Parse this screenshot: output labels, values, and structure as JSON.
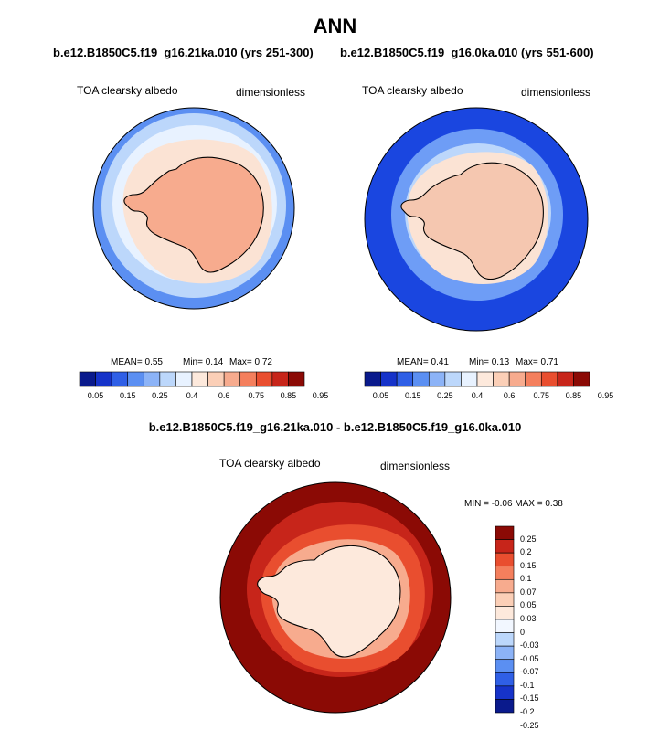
{
  "title": "ANN",
  "panels": [
    {
      "case": "b.e12.B1850C5.f19_g16.21ka.010 (yrs 251-300)",
      "variable": "TOA clearsky albedo",
      "units": "dimensionless",
      "stats": {
        "mean": "MEAN=   0.55",
        "min": "Min=   0.14",
        "max": "Max=   0.72"
      },
      "map": {
        "ocean_near_ice": "#fbe3d4",
        "ocean_mid": "#e8f2ff",
        "ocean_outer": "#bcd7fb",
        "ocean_edge": "#5b8ff2",
        "land": "#f7ab8e"
      }
    },
    {
      "case": "b.e12.B1850C5.f19_g16.0ka.010 (yrs 551-600)",
      "variable": "TOA clearsky albedo",
      "units": "dimensionless",
      "stats": {
        "mean": "MEAN=   0.41",
        "min": "Min=   0.13",
        "max": "Max=   0.71"
      },
      "map": {
        "ocean_near_ice": "#fbe3d4",
        "ocean_mid": "#bcd7fb",
        "ocean_outer": "#6e9df6",
        "ocean_edge": "#1a46e0",
        "land": "#f5c7b0"
      }
    }
  ],
  "main_colorbar": {
    "colors": [
      "#0a1a8c",
      "#1633c9",
      "#2f5fe6",
      "#5b8ff2",
      "#8cb3f7",
      "#bcd7fb",
      "#e8f2ff",
      "#fde9dc",
      "#fbcfb7",
      "#f7ab8e",
      "#f47f5d",
      "#e94e2f",
      "#c7251a",
      "#8b0a05"
    ],
    "tick_labels": [
      "0.05",
      "0.15",
      "0.25",
      "0.4",
      "0.6",
      "0.75",
      "0.85",
      "0.95"
    ]
  },
  "difference": {
    "title": "b.e12.B1850C5.f19_g16.21ka.010 - b.e12.B1850C5.f19_g16.0ka.010",
    "variable": "TOA clearsky albedo",
    "units": "dimensionless",
    "minmax": "MIN =  -0.06 MAX =   0.38",
    "map": {
      "outer": "#8b0a05",
      "mid": "#c7251a",
      "inner": "#e94e2f",
      "near_ice": "#f7ab8e",
      "land": "#fde9dc"
    },
    "colorbar": {
      "colors": [
        "#8b0a05",
        "#c7251a",
        "#e94e2f",
        "#f47f5d",
        "#f7ab8e",
        "#fbcfb7",
        "#fde9dc",
        "#f2f7ff",
        "#bcd7fb",
        "#8cb3f7",
        "#5b8ff2",
        "#2f5fe6",
        "#1633c9",
        "#0a1a8c"
      ],
      "tick_labels": [
        "0.25",
        "0.2",
        "0.15",
        "0.1",
        "0.07",
        "0.05",
        "0.03",
        "0",
        "-0.03",
        "-0.05",
        "-0.07",
        "-0.1",
        "-0.15",
        "-0.2",
        "-0.25"
      ]
    }
  }
}
